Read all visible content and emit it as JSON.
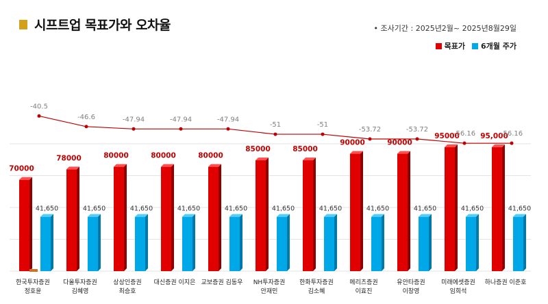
{
  "header": {
    "title": "시프트업 목표가와 오차율",
    "period": "• 조사기간 : 2025년2월~ 2025년8월29일"
  },
  "legend": [
    {
      "label": "목표가",
      "color": "#e00000"
    },
    {
      "label": "6개월 주가",
      "color": "#00a8e8"
    }
  ],
  "chart_data": {
    "type": "bar",
    "categories": [
      [
        "한국투자증권",
        "정호윤"
      ],
      [
        "다올투자증권",
        "김혜영"
      ],
      [
        "상상인증권",
        "최승호"
      ],
      [
        "대신증권 이지은"
      ],
      [
        "교보증권 김동우"
      ],
      [
        "NH투자증권",
        "안재민"
      ],
      [
        "한화투자증권",
        "김소혜"
      ],
      [
        "메리츠증권",
        "이효진"
      ],
      [
        "유안타증권",
        "이창영"
      ],
      [
        "미래에셋증권",
        "임희석"
      ],
      [
        "하나증권 이준호"
      ]
    ],
    "series": [
      {
        "name": "목표가",
        "color": "#e00000",
        "values": [
          70000,
          78000,
          80000,
          80000,
          80000,
          85000,
          85000,
          90000,
          90000,
          95000,
          95000
        ],
        "labels": [
          "70000",
          "78000",
          "80000",
          "80000",
          "80000",
          "85000",
          "85000",
          "90000",
          "90000",
          "95000",
          "95,000"
        ]
      },
      {
        "name": "6개월 주가",
        "color": "#00a8e8",
        "values": [
          41650,
          41650,
          41650,
          41650,
          41650,
          41650,
          41650,
          41650,
          41650,
          41650,
          41650
        ],
        "labels": [
          "41,650",
          "41,650",
          "41,650",
          "41,650",
          "41,650",
          "41,650",
          "41,650",
          "41,650",
          "41,650",
          "41,650",
          "41,650"
        ]
      },
      {
        "type": "line",
        "color": "#c00000",
        "values": [
          -40.5,
          -46.6,
          -47.94,
          -47.94,
          -47.94,
          -51,
          -51,
          -53.72,
          -53.72,
          -56.16,
          -56.16
        ],
        "labels": [
          "-40.5",
          "-46.6",
          "-47.94",
          "-47.94",
          "-47.94",
          "-51",
          "-51",
          "-53.72",
          "-53.72",
          "-56.16",
          "-56.16"
        ]
      }
    ],
    "ylim": [
      0,
      105000
    ],
    "line_ylim": [
      -62,
      -36
    ],
    "grid": true
  }
}
